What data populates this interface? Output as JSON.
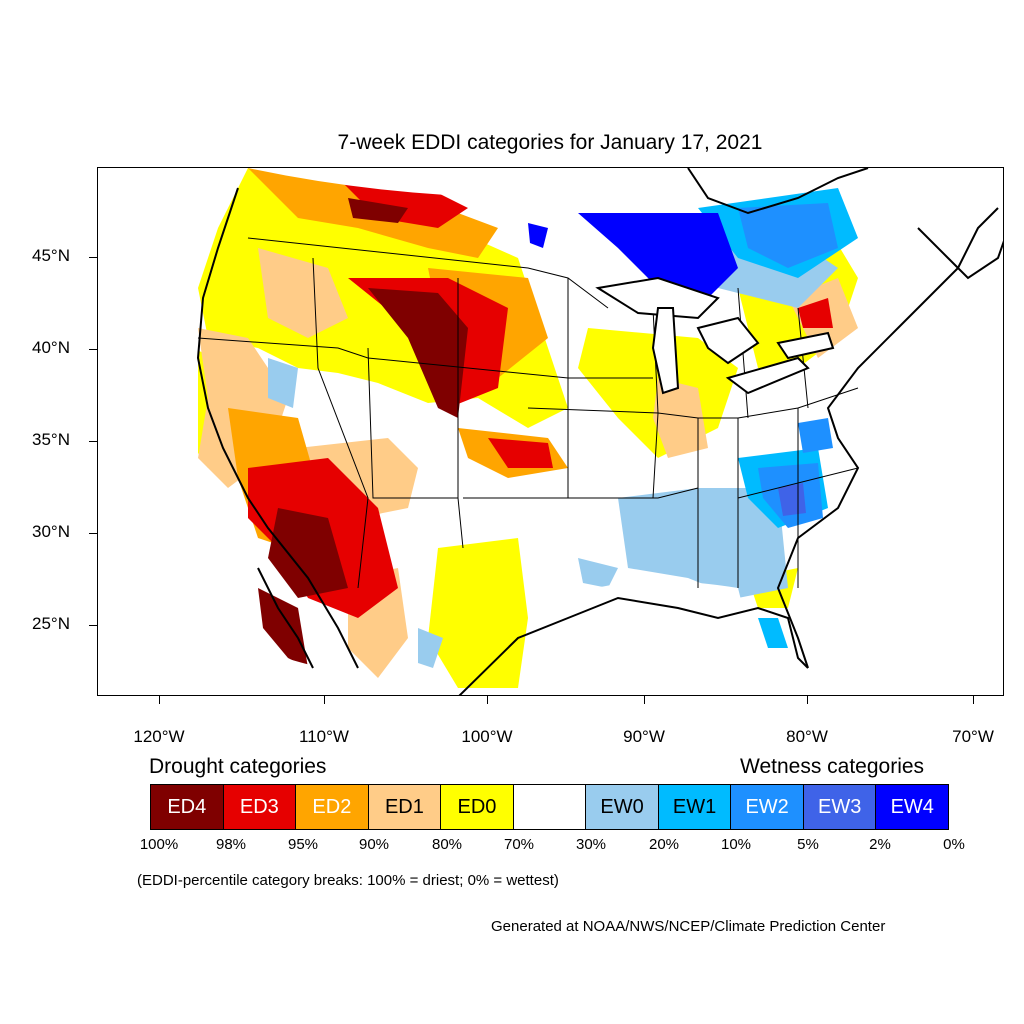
{
  "title": "7-week EDDI categories for January 17, 2021",
  "lat_labels": [
    "45°N",
    "40°N",
    "35°N",
    "30°N",
    "25°N"
  ],
  "lon_labels": [
    "120°W",
    "110°W",
    "100°W",
    "90°W",
    "80°W",
    "70°W"
  ],
  "drought_heading": "Drought categories",
  "wetness_heading": "Wetness categories",
  "categories": [
    {
      "label": "ED4",
      "color": "#7f0000",
      "text_color": "#ffffff"
    },
    {
      "label": "ED3",
      "color": "#e60000",
      "text_color": "#ffffff"
    },
    {
      "label": "ED2",
      "color": "#ffa500",
      "text_color": "#ffffff"
    },
    {
      "label": "ED1",
      "color": "#ffcc88",
      "text_color": "#000000"
    },
    {
      "label": "ED0",
      "color": "#ffff00",
      "text_color": "#000000"
    },
    {
      "label": "",
      "color": "#ffffff",
      "text_color": "#000000"
    },
    {
      "label": "EW0",
      "color": "#99ccee",
      "text_color": "#000000"
    },
    {
      "label": "EW1",
      "color": "#00bbff",
      "text_color": "#000000"
    },
    {
      "label": "EW2",
      "color": "#1e90ff",
      "text_color": "#ffffff"
    },
    {
      "label": "EW3",
      "color": "#3f63e8",
      "text_color": "#ffffff"
    },
    {
      "label": "EW4",
      "color": "#0000ff",
      "text_color": "#ffffff"
    }
  ],
  "percent_breaks": [
    "100%",
    "98%",
    "95%",
    "90%",
    "80%",
    "70%",
    "30%",
    "20%",
    "10%",
    "5%",
    "2%",
    "0%"
  ],
  "note": "(EDDI-percentile category breaks: 100% = driest; 0% = wettest)",
  "credit": "Generated at NOAA/NWS/NCEP/Climate Prediction Center"
}
